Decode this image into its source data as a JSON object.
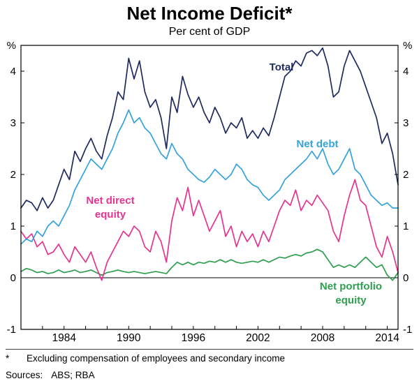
{
  "footer": {
    "footnote_marker": "*",
    "footnote_text": "Excluding compensation of employees and secondary income",
    "sources_label": "Sources:",
    "sources_value": "ABS; RBA"
  },
  "chart_data": {
    "type": "line",
    "title": "Net Income Deficit*",
    "subtitle": "Per cent of GDP",
    "unit": "%",
    "xlim": [
      1980,
      2015
    ],
    "ylim": [
      -1,
      4.5
    ],
    "yticks": [
      -1,
      0,
      1,
      2,
      3,
      4
    ],
    "xtick_labels": [
      1984,
      1990,
      1996,
      2002,
      2008,
      2014
    ],
    "xtick_minor_step": 2,
    "zero_line": true,
    "grid": false,
    "legend": "inline-annotations",
    "x": [
      1980,
      1980.5,
      1981,
      1981.5,
      1982,
      1982.5,
      1983,
      1983.5,
      1984,
      1984.5,
      1985,
      1985.5,
      1986,
      1986.5,
      1987,
      1987.5,
      1988,
      1988.5,
      1989,
      1989.5,
      1990,
      1990.5,
      1991,
      1991.5,
      1992,
      1992.5,
      1993,
      1993.5,
      1994,
      1994.5,
      1995,
      1995.5,
      1996,
      1996.5,
      1997,
      1997.5,
      1998,
      1998.5,
      1999,
      1999.5,
      2000,
      2000.5,
      2001,
      2001.5,
      2002,
      2002.5,
      2003,
      2003.5,
      2004,
      2004.5,
      2005,
      2005.5,
      2006,
      2006.5,
      2007,
      2007.5,
      2008,
      2008.5,
      2009,
      2009.5,
      2010,
      2010.5,
      2011,
      2011.5,
      2012,
      2012.5,
      2013,
      2013.5,
      2014,
      2014.5,
      2015
    ],
    "series": [
      {
        "name": "Total",
        "color": "#1f2a5e",
        "values": [
          1.35,
          1.5,
          1.45,
          1.3,
          1.55,
          1.35,
          1.5,
          1.8,
          2.1,
          1.9,
          2.45,
          2.25,
          2.5,
          2.7,
          2.45,
          2.3,
          2.75,
          3.1,
          3.6,
          3.45,
          4.25,
          3.85,
          4.2,
          3.6,
          3.3,
          3.45,
          3.1,
          2.5,
          3.5,
          3.2,
          3.9,
          3.55,
          3.3,
          3.5,
          3.2,
          3.0,
          3.3,
          3.1,
          2.8,
          3.0,
          2.9,
          3.1,
          2.7,
          2.85,
          2.7,
          2.9,
          2.75,
          3.1,
          3.5,
          3.9,
          4.0,
          4.2,
          4.1,
          4.35,
          4.4,
          4.3,
          4.45,
          4.1,
          3.5,
          3.6,
          4.1,
          4.4,
          4.2,
          4.0,
          3.7,
          3.4,
          3.1,
          2.6,
          2.8,
          2.4,
          1.8
        ]
      },
      {
        "name": "Net debt",
        "color": "#36a2dc",
        "values": [
          0.65,
          0.75,
          0.7,
          0.9,
          0.8,
          1.0,
          1.1,
          1.0,
          1.2,
          1.4,
          1.7,
          1.9,
          2.1,
          2.3,
          2.2,
          2.1,
          2.3,
          2.5,
          2.8,
          3.0,
          3.25,
          3.0,
          3.1,
          2.9,
          2.8,
          2.6,
          2.4,
          2.3,
          2.6,
          2.4,
          2.3,
          2.1,
          2.0,
          1.9,
          1.85,
          1.95,
          2.1,
          2.0,
          1.9,
          2.0,
          2.2,
          2.1,
          1.9,
          1.8,
          1.75,
          1.6,
          1.5,
          1.6,
          1.7,
          1.9,
          2.0,
          2.1,
          2.2,
          2.3,
          2.45,
          2.3,
          2.5,
          2.2,
          2.0,
          2.1,
          2.3,
          2.5,
          2.1,
          2.0,
          1.8,
          1.6,
          1.5,
          1.4,
          1.45,
          1.35,
          1.35
        ]
      },
      {
        "name": "Net direct equity",
        "color": "#e73390",
        "values": [
          0.9,
          0.75,
          0.85,
          0.6,
          0.7,
          0.45,
          0.5,
          0.65,
          0.45,
          0.3,
          0.6,
          0.45,
          0.3,
          0.5,
          0.2,
          -0.05,
          0.3,
          0.5,
          0.7,
          0.9,
          0.8,
          1.0,
          0.9,
          0.6,
          0.5,
          0.9,
          0.7,
          0.3,
          1.1,
          1.55,
          1.3,
          1.75,
          1.2,
          1.5,
          1.2,
          0.9,
          1.1,
          1.3,
          0.8,
          1.0,
          0.6,
          0.9,
          0.7,
          0.85,
          0.6,
          0.9,
          0.7,
          1.0,
          1.3,
          1.5,
          1.4,
          1.7,
          1.3,
          1.5,
          1.4,
          1.6,
          1.45,
          1.3,
          0.9,
          0.7,
          1.2,
          1.6,
          1.9,
          1.5,
          1.4,
          1.0,
          0.6,
          0.4,
          0.8,
          0.5,
          0.1
        ]
      },
      {
        "name": "Net portfolio equity",
        "color": "#2e9e4f",
        "values": [
          0.12,
          0.18,
          0.15,
          0.1,
          0.12,
          0.08,
          0.1,
          0.15,
          0.1,
          0.12,
          0.15,
          0.1,
          0.12,
          0.15,
          0.1,
          0.05,
          0.1,
          0.12,
          0.15,
          0.12,
          0.1,
          0.12,
          0.1,
          0.08,
          0.1,
          0.12,
          0.1,
          0.08,
          0.2,
          0.3,
          0.25,
          0.3,
          0.25,
          0.3,
          0.28,
          0.32,
          0.3,
          0.35,
          0.3,
          0.35,
          0.3,
          0.28,
          0.3,
          0.32,
          0.3,
          0.35,
          0.3,
          0.35,
          0.4,
          0.38,
          0.42,
          0.45,
          0.42,
          0.48,
          0.5,
          0.55,
          0.5,
          0.35,
          0.2,
          0.25,
          0.2,
          0.25,
          0.2,
          0.3,
          0.4,
          0.3,
          0.2,
          0.25,
          0.05,
          -0.05,
          0.1
        ]
      }
    ]
  }
}
